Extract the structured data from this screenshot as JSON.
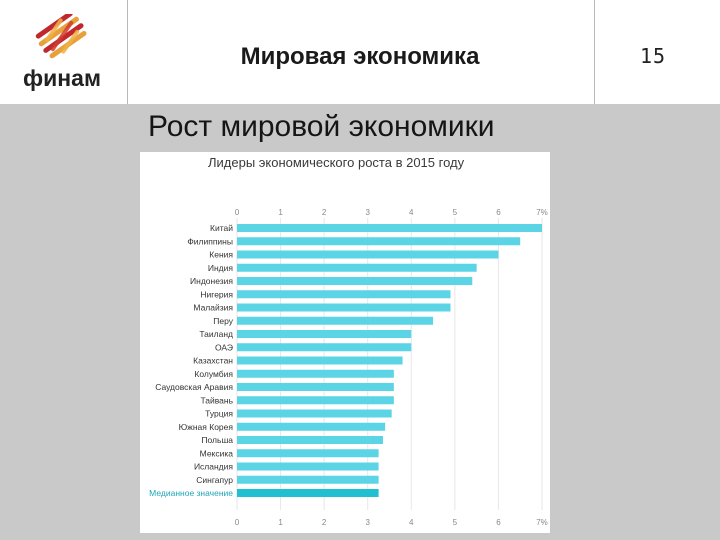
{
  "header": {
    "logo_text": "финам",
    "title": "Мировая экономика",
    "page_number": "15"
  },
  "slide": {
    "subtitle": "Рост мировой экономики"
  },
  "colors": {
    "bar": "#5bd4e6",
    "median_bar": "#20c0d2",
    "median_label": "#1fa6b8",
    "logo_red": "#c0282d",
    "logo_orange": "#e8a13a"
  },
  "chart_data": {
    "type": "bar",
    "orientation": "horizontal",
    "title": "Лидеры экономического роста в 2015 году",
    "categories": [
      "Китай",
      "Филиппины",
      "Кения",
      "Индия",
      "Индонезия",
      "Нигерия",
      "Малайзия",
      "Перу",
      "Таиланд",
      "ОАЭ",
      "Казахстан",
      "Колумбия",
      "Саудовская Аравия",
      "Тайвань",
      "Турция",
      "Южная Корея",
      "Польша",
      "Мексика",
      "Исландия",
      "Сингапур",
      "Медианное значение"
    ],
    "values": [
      7.0,
      6.5,
      6.0,
      5.5,
      5.4,
      4.9,
      4.9,
      4.5,
      4.0,
      4.0,
      3.8,
      3.6,
      3.6,
      3.6,
      3.55,
      3.4,
      3.35,
      3.25,
      3.25,
      3.25,
      3.25
    ],
    "xlim": [
      0,
      7
    ],
    "ticks": [
      "0",
      "1",
      "2",
      "3",
      "4",
      "5",
      "6",
      "7%"
    ],
    "grid": true,
    "highlight": "Медианное значение"
  }
}
